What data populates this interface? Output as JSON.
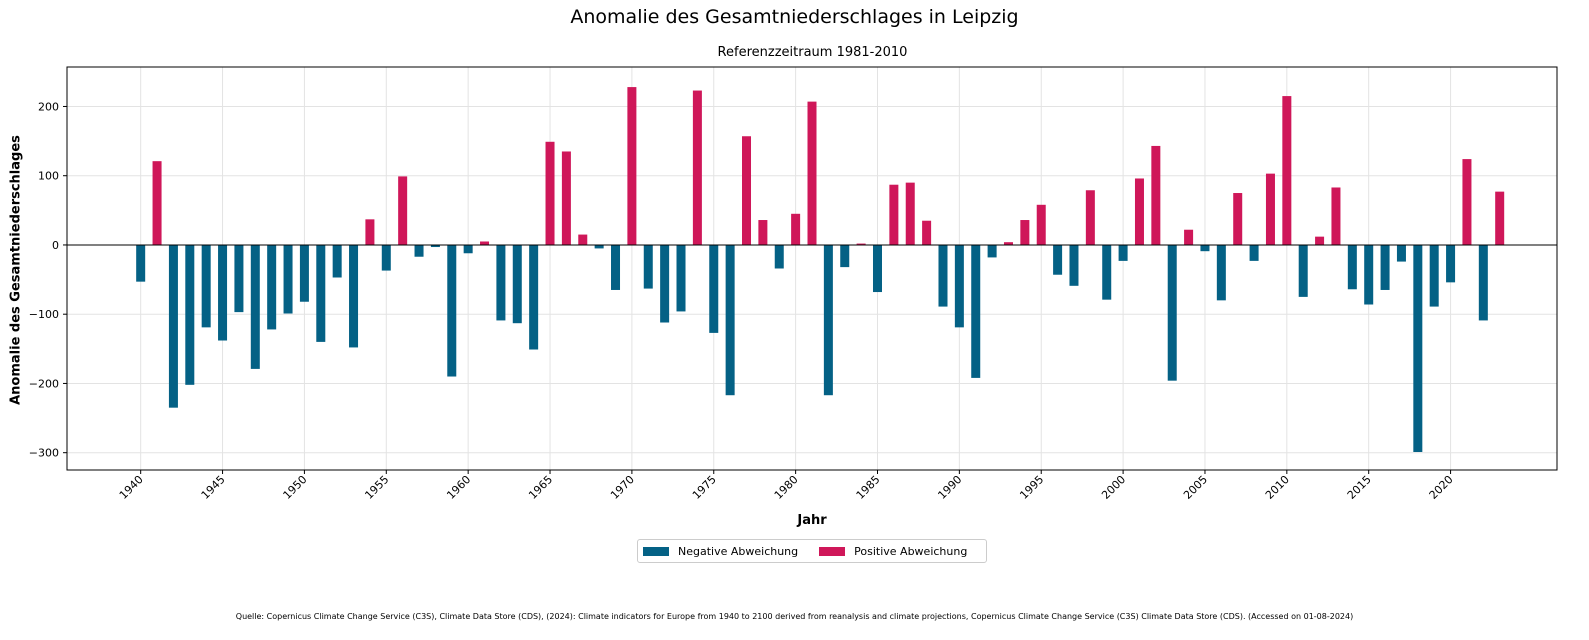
{
  "title": "Anomalie des Gesamtniederschlages in Leipzig",
  "subtitle": "Referenzzeitraum 1981-2010",
  "source": "Quelle: Copernicus Climate Change Service (C3S), Climate Data Store (CDS), (2024): Climate indicators for Europe from 1940 to 2100 derived from reanalysis and climate projections, Copernicus Climate Change Service (C3S) Climate Data Store (CDS). (Accessed on 01-08-2024)",
  "legend": {
    "negative": "Negative Abweichung",
    "positive": "Positive Abweichung"
  },
  "colors": {
    "negative": "#046185",
    "positive": "#cf1759"
  },
  "chart_data": {
    "type": "bar",
    "title": "Anomalie des Gesamtniederschlages in Leipzig",
    "subtitle": "Referenzzeitraum 1981-2010",
    "xlabel": "Jahr",
    "ylabel": "Anomalie des Gesamtniederschlages",
    "xlim": [
      1935.5,
      2026.5
    ],
    "ylim": [
      -325,
      257
    ],
    "xticks": [
      1940,
      1945,
      1950,
      1955,
      1960,
      1965,
      1970,
      1975,
      1980,
      1985,
      1990,
      1995,
      2000,
      2005,
      2010,
      2015,
      2020
    ],
    "yticks": [
      -300,
      -200,
      -100,
      0,
      100,
      200
    ],
    "grid": true,
    "legend_position": "below",
    "x": [
      1940,
      1941,
      1942,
      1943,
      1944,
      1945,
      1946,
      1947,
      1948,
      1949,
      1950,
      1951,
      1952,
      1953,
      1954,
      1955,
      1956,
      1957,
      1958,
      1959,
      1960,
      1961,
      1962,
      1963,
      1964,
      1965,
      1966,
      1967,
      1968,
      1969,
      1970,
      1971,
      1972,
      1973,
      1974,
      1975,
      1976,
      1977,
      1978,
      1979,
      1980,
      1981,
      1982,
      1983,
      1984,
      1985,
      1986,
      1987,
      1988,
      1989,
      1990,
      1991,
      1992,
      1993,
      1994,
      1995,
      1996,
      1997,
      1998,
      1999,
      2000,
      2001,
      2002,
      2003,
      2004,
      2005,
      2006,
      2007,
      2008,
      2009,
      2010,
      2011,
      2012,
      2013,
      2014,
      2015,
      2016,
      2017,
      2018,
      2019,
      2020,
      2021,
      2022,
      2023
    ],
    "values": [
      -53,
      121,
      -235,
      -202,
      -119,
      -138,
      -97,
      -179,
      -122,
      -99,
      -82,
      -140,
      -47,
      -148,
      37,
      -37,
      99,
      -17,
      -3,
      -190,
      -12,
      5,
      -109,
      -113,
      -151,
      149,
      135,
      15,
      -5,
      -65,
      228,
      -63,
      -112,
      -96,
      223,
      -127,
      -217,
      157,
      36,
      -34,
      45,
      207,
      -217,
      -32,
      2,
      -68,
      87,
      90,
      35,
      -89,
      -119,
      -192,
      -18,
      4,
      36,
      58,
      -43,
      -59,
      79,
      -79,
      -23,
      96,
      143,
      -196,
      22,
      -9,
      -80,
      75,
      -23,
      103,
      215,
      -75,
      12,
      83,
      -64,
      -86,
      -65,
      -24,
      -299,
      -89,
      -54,
      124,
      -109,
      77
    ]
  }
}
